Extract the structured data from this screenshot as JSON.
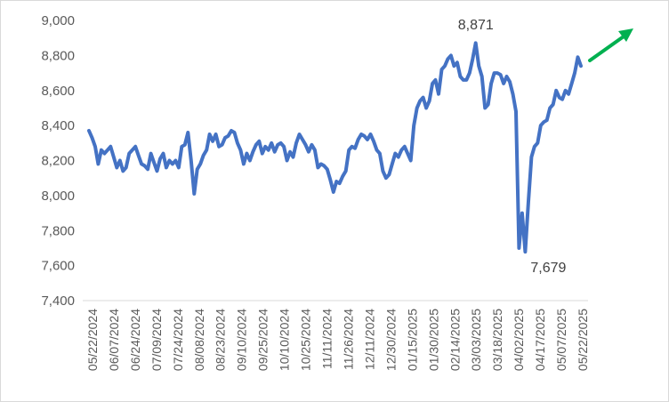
{
  "chart_data": {
    "type": "line",
    "title": "",
    "xlabel": "",
    "ylabel": "",
    "ylim": [
      7400,
      9000
    ],
    "yticks": [
      7400,
      7600,
      7800,
      8000,
      8200,
      8400,
      8600,
      8800,
      9000
    ],
    "ytick_labels": [
      "7,400",
      "7,600",
      "7,800",
      "8,000",
      "8,200",
      "8,400",
      "8,600",
      "8,800",
      "9,000"
    ],
    "xtick_labels": [
      "05/22/2024",
      "06/07/2024",
      "06/24/2024",
      "07/09/2024",
      "07/24/2024",
      "08/08/2024",
      "08/23/2024",
      "09/10/2024",
      "09/25/2024",
      "10/10/2024",
      "10/25/2024",
      "11/11/2024",
      "11/26/2024",
      "12/11/2024",
      "12/30/2024",
      "01/15/2025",
      "01/30/2025",
      "02/14/2025",
      "03/03/2025",
      "03/18/2025",
      "04/02/2025",
      "04/17/2025",
      "05/07/2025",
      "05/22/2025"
    ],
    "grid": false,
    "legend": "none",
    "series": [
      {
        "color": "#4472c4",
        "values": [
          8370,
          8330,
          8280,
          8180,
          8260,
          8240,
          8260,
          8280,
          8220,
          8160,
          8200,
          8140,
          8160,
          8240,
          8260,
          8280,
          8230,
          8180,
          8170,
          8150,
          8240,
          8190,
          8140,
          8210,
          8240,
          8160,
          8200,
          8180,
          8200,
          8160,
          8280,
          8290,
          8360,
          8200,
          8010,
          8150,
          8180,
          8230,
          8260,
          8350,
          8310,
          8350,
          8280,
          8290,
          8330,
          8340,
          8370,
          8360,
          8300,
          8260,
          8180,
          8240,
          8200,
          8250,
          8290,
          8310,
          8240,
          8280,
          8260,
          8300,
          8250,
          8290,
          8300,
          8280,
          8200,
          8250,
          8220,
          8300,
          8350,
          8320,
          8290,
          8250,
          8290,
          8260,
          8160,
          8180,
          8170,
          8150,
          8090,
          8020,
          8080,
          8070,
          8110,
          8140,
          8260,
          8280,
          8270,
          8320,
          8350,
          8340,
          8320,
          8350,
          8310,
          8260,
          8240,
          8140,
          8100,
          8120,
          8180,
          8240,
          8220,
          8260,
          8280,
          8240,
          8200,
          8400,
          8500,
          8540,
          8560,
          8500,
          8540,
          8640,
          8660,
          8580,
          8720,
          8740,
          8780,
          8800,
          8740,
          8760,
          8680,
          8660,
          8660,
          8700,
          8780,
          8871,
          8740,
          8680,
          8500,
          8520,
          8640,
          8700,
          8700,
          8690,
          8640,
          8680,
          8650,
          8580,
          8480,
          7700,
          7900,
          7679,
          7960,
          8220,
          8280,
          8300,
          8400,
          8420,
          8430,
          8500,
          8520,
          8600,
          8560,
          8550,
          8600,
          8580,
          8640,
          8700,
          8790,
          8740
        ]
      }
    ],
    "annotations": [
      {
        "text": "8,871",
        "value": 8871
      },
      {
        "text": "7,679",
        "value": 7679
      }
    ],
    "arrow_color": "#00b050"
  }
}
